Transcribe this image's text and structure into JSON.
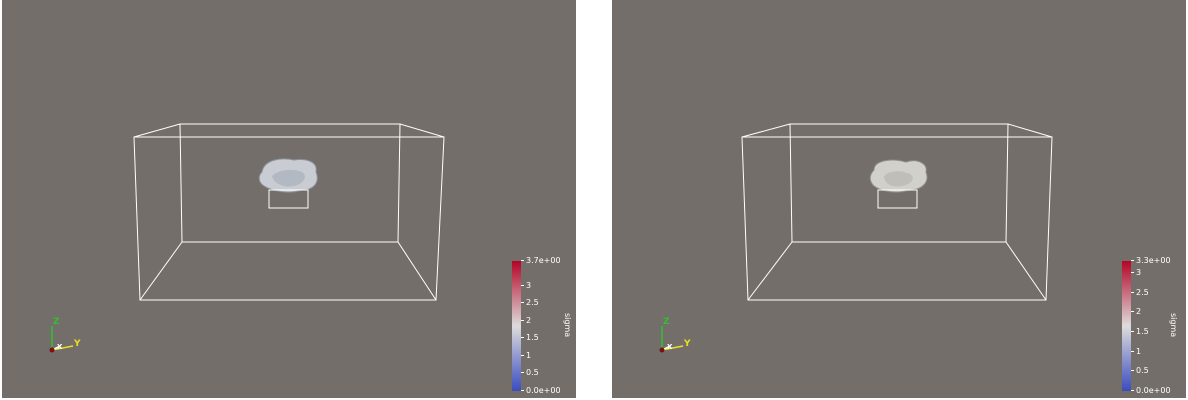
{
  "views": [
    {
      "id": "left",
      "colorbar": {
        "title": "sigma",
        "colors": [
          "#3b4cc0",
          "#dddcdc",
          "#b40426"
        ],
        "ticks": [
          "0.0e+00",
          "0.5",
          "1",
          "1.5",
          "2",
          "2.5",
          "3",
          "3.7e+00"
        ],
        "tick_values": [
          0,
          0.5,
          1,
          1.5,
          2,
          2.5,
          3,
          3.7
        ],
        "range": [
          0,
          3.7
        ]
      },
      "axes": {
        "z": "Z",
        "y": "Y",
        "x": "X"
      }
    },
    {
      "id": "right",
      "colorbar": {
        "title": "sigma",
        "colors": [
          "#3b4cc0",
          "#dddcdc",
          "#b40426"
        ],
        "ticks": [
          "0.0e+00",
          "0.5",
          "1",
          "1.5",
          "2",
          "2.5",
          "3",
          "3.3e+00"
        ],
        "tick_values": [
          0,
          0.5,
          1,
          1.5,
          2,
          2.5,
          3,
          3.3
        ],
        "range": [
          0,
          3.3
        ]
      },
      "axes": {
        "z": "Z",
        "y": "Y",
        "x": "X"
      }
    }
  ],
  "colors": {
    "background": "#736e69",
    "outline": "#ffffff",
    "surface": "#c9ccd3",
    "axis_x": "#ff3030",
    "axis_y": "#e8e020",
    "axis_z": "#30c030"
  }
}
